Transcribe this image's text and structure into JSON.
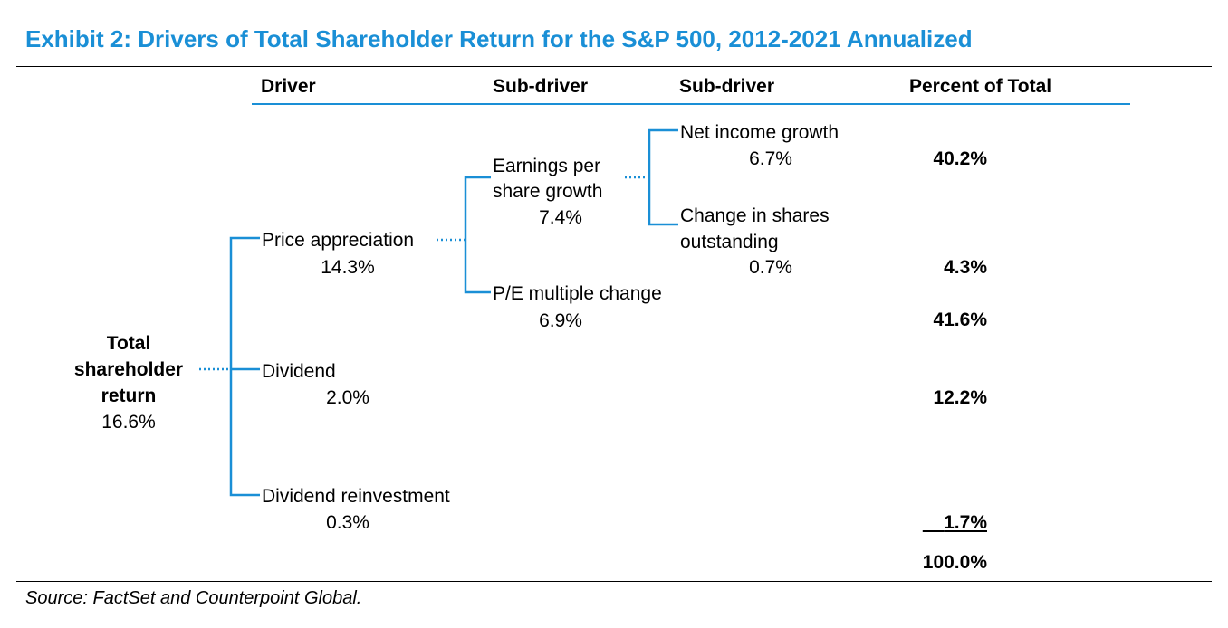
{
  "title": "Exhibit 2: Drivers of Total Shareholder Return for the S&P 500, 2012-2021 Annualized",
  "headers": {
    "driver": "Driver",
    "sub_driver_1": "Sub-driver",
    "sub_driver_2": "Sub-driver",
    "percent": "Percent of Total"
  },
  "root": {
    "label_line1": "Total",
    "label_line2": "shareholder",
    "label_line3": "return",
    "value": "16.6%"
  },
  "drivers": {
    "price_appreciation": {
      "label": "Price appreciation",
      "value": "14.3%"
    },
    "dividend": {
      "label": "Dividend",
      "value": "2.0%"
    },
    "dividend_reinvestment": {
      "label": "Dividend reinvestment",
      "value": "0.3%"
    }
  },
  "sub_drivers": {
    "eps_growth": {
      "label_line1": "Earnings per",
      "label_line2": "share growth",
      "value": "7.4%"
    },
    "pe_change": {
      "label": "P/E multiple change",
      "value": "6.9%"
    }
  },
  "sub_sub_drivers": {
    "net_income_growth": {
      "label": "Net income growth",
      "value": "6.7%"
    },
    "shares_change": {
      "label_line1": "Change in shares",
      "label_line2": "outstanding",
      "value": "0.7%"
    }
  },
  "percent_of_total": {
    "net_income_growth": "40.2%",
    "shares_change": "4.3%",
    "pe_change": "41.6%",
    "dividend": "12.2%",
    "dividend_reinvestment": "1.7%",
    "total": "100.0%"
  },
  "source": "Source: FactSet and Counterpoint Global.",
  "colors": {
    "accent": "#1a8fd6",
    "text": "#000000"
  }
}
